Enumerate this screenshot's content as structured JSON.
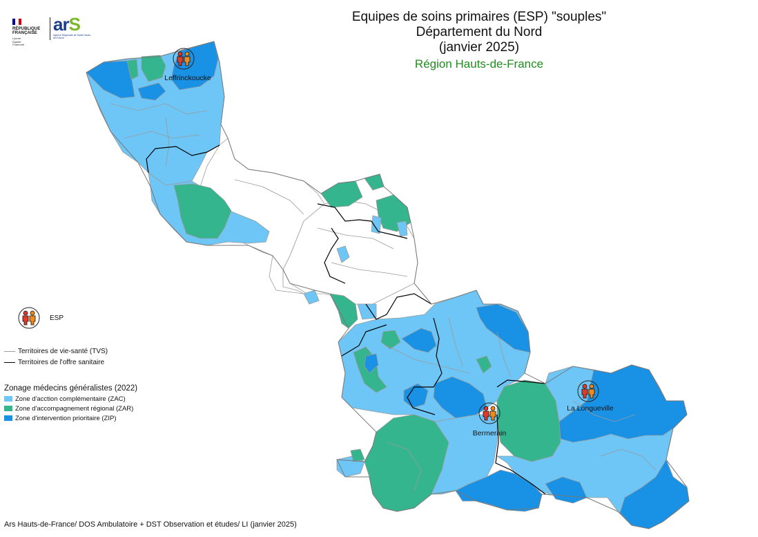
{
  "header": {
    "logo_rf_text": "RÉPUBLIQUE\nFRANÇAISE",
    "logo_rf_motto": "Liberté\nÉgalité\nFraternité",
    "logo_ars_word": "ar",
    "logo_ars_s": "S",
    "logo_ars_sub": "Agence Régionale de Santé Hauts-de-France"
  },
  "title": {
    "line1": "Equipes de soins primaires (ESP) \"souples\"",
    "line2": "Département du Nord",
    "line3": "(janvier 2025)",
    "region": "Région Hauts-de-France"
  },
  "colors": {
    "zac": "#6ec6f7",
    "zar": "#35b58e",
    "zip": "#1992e6",
    "none": "#ffffff",
    "tvs_border": "#9a9a9a",
    "tos_border": "#000000",
    "region_title": "#1f8c1f"
  },
  "places": {
    "leffrinckoucke": "Leffrinckoucke",
    "bermerain": "Bermerain",
    "la_longueville": "La Longueville"
  },
  "legend": {
    "esp_label": "ESP",
    "esp_icon": "two-people-icon",
    "tvs_label": "Territoires de vie-santé (TVS)",
    "tos_label": "Territoires de l'offre sanitaire",
    "zoning_title": "Zonage médecins généralistes (2022)",
    "zac_label": "Zone d'acction complémentaire (ZAC)",
    "zar_label": "Zone d'accompagnement régional (ZAR)",
    "zip_label": "Zone d'intervention prioritaire (ZIP)"
  },
  "source": "Ars Hauts-de-France/ DOS Ambulatoire + DST Observation et études/ LI (janvier 2025)"
}
